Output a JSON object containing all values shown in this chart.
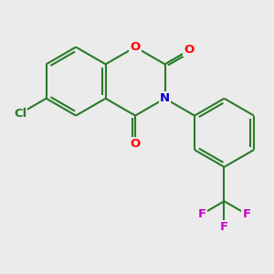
{
  "background_color": "#ebebeb",
  "bond_color": "#2a7a2a",
  "line_width": 1.5,
  "atom_colors": {
    "O": "#ff0000",
    "N": "#0000cc",
    "Cl": "#2a7a2a",
    "F": "#cc00cc",
    "C": "#333333"
  },
  "font_size_atom": 9.5,
  "font_size_small": 9
}
